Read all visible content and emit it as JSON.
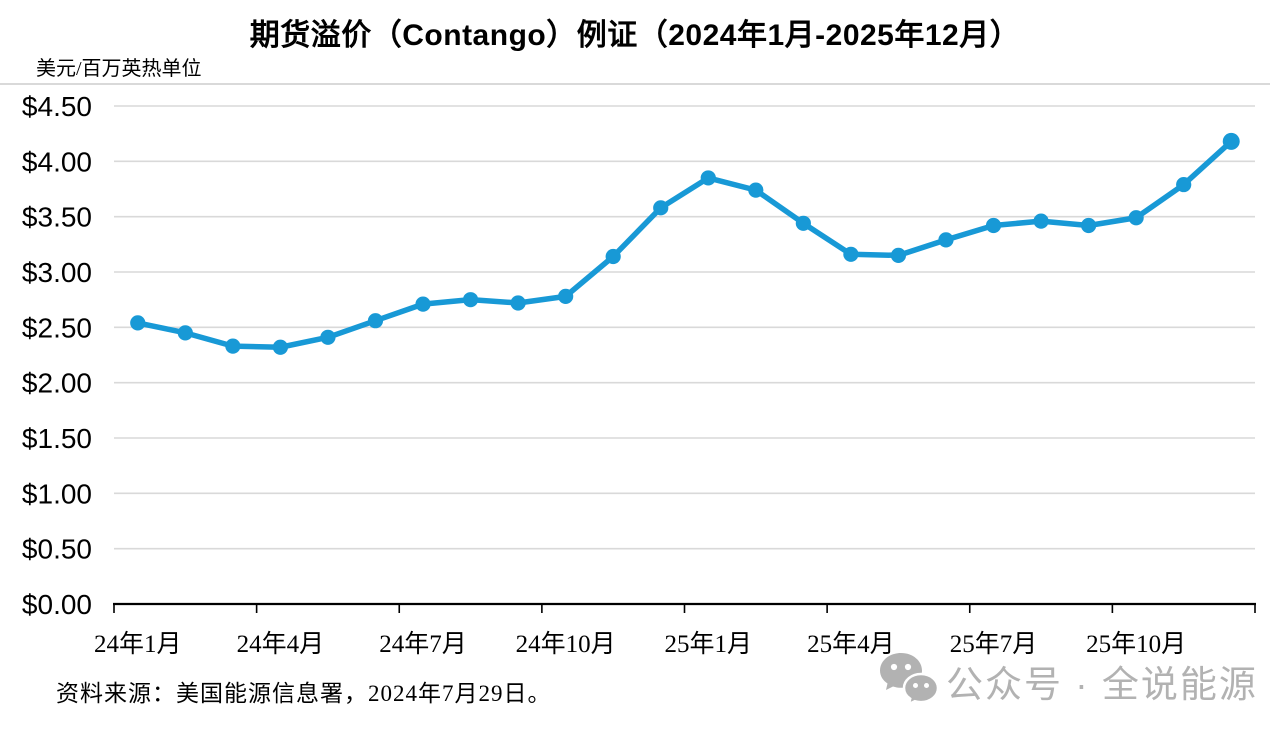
{
  "unit_label": "美元/百万英热单位",
  "source_note": "资料来源：美国能源信息署，2024年7月29日。",
  "watermark": {
    "icon": "wechat-icon",
    "text": "公众号 · 全说能源"
  },
  "colors": {
    "line": "#1899d6",
    "grid": "#d9d9d9",
    "axis": "#000000",
    "watermark_gray": "#b2b2b2"
  },
  "chart_data": {
    "type": "line",
    "title": "期货溢价（Contango）例证（2024年1月-2025年12月）",
    "ylabel": "美元/百万英热单位",
    "xlabel": "",
    "ylim": [
      0,
      4.5
    ],
    "grid": "horizontal",
    "legend_position": "none",
    "x": [
      "24年1月",
      "24年2月",
      "24年3月",
      "24年4月",
      "24年5月",
      "24年6月",
      "24年7月",
      "24年8月",
      "24年9月",
      "24年10月",
      "24年11月",
      "24年12月",
      "25年1月",
      "25年2月",
      "25年3月",
      "25年4月",
      "25年5月",
      "25年6月",
      "25年7月",
      "25年8月",
      "25年9月",
      "25年10月",
      "25年11月",
      "25年12月"
    ],
    "values": [
      2.54,
      2.45,
      2.33,
      2.32,
      2.41,
      2.56,
      2.71,
      2.75,
      2.72,
      2.78,
      3.14,
      3.58,
      3.85,
      3.74,
      3.44,
      3.16,
      3.15,
      3.29,
      3.42,
      3.46,
      3.42,
      3.49,
      3.79,
      4.18
    ],
    "x_tick_indices": [
      0,
      3,
      6,
      9,
      12,
      15,
      18,
      21
    ],
    "x_tick_labels": [
      "24年1月",
      "24年4月",
      "24年7月",
      "24年10月",
      "25年1月",
      "25年4月",
      "25年7月",
      "25年10月"
    ],
    "y_tick_values": [
      0,
      0.5,
      1,
      1.5,
      2,
      2.5,
      3,
      3.5,
      4,
      4.5
    ],
    "y_tick_labels": [
      "$0.00",
      "$0.50",
      "$1.00",
      "$1.50",
      "$2.00",
      "$2.50",
      "$3.00",
      "$3.50",
      "$4.00",
      "$4.50"
    ]
  }
}
